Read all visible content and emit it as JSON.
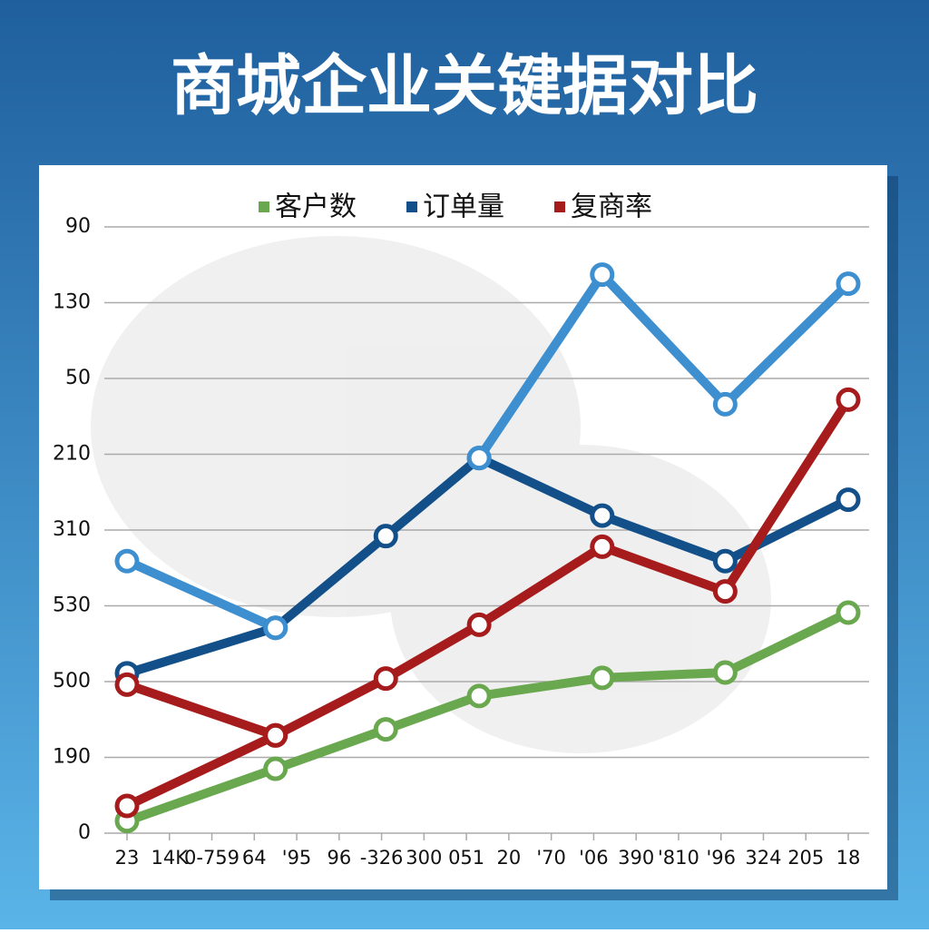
{
  "chart_data": {
    "type": "line",
    "title": "商城企业关键据对比",
    "x": [
      0,
      3.5,
      6.1,
      8.3,
      11.2,
      14.1,
      17
    ],
    "series": [
      {
        "name": "客户数",
        "color": "#6aa84f",
        "values": [
          0.16,
          0.85,
          1.37,
          1.81,
          2.05,
          2.12,
          2.91
        ]
      },
      {
        "name": "订单量",
        "color": "#13508a",
        "values": [
          2.11,
          2.71,
          3.92,
          4.95,
          4.19,
          3.59,
          4.4
        ]
      },
      {
        "name": "复商率",
        "color": "#a61c1c",
        "values": [
          0.36,
          1.29,
          2.04,
          2.75,
          3.78,
          3.19,
          5.72
        ]
      },
      {
        "color": "#3d8fd0",
        "values": [
          3.59,
          2.71,
          null,
          4.95,
          7.37,
          5.66,
          7.25
        ]
      },
      {
        "color": "#a61c1c",
        "values": [
          1.96,
          1.29,
          null,
          null,
          null,
          null,
          null
        ]
      }
    ],
    "xlim": [
      0,
      17
    ],
    "xticks": [
      {
        "value": 0,
        "label": "23"
      },
      {
        "value": 1,
        "label": "14K"
      },
      {
        "value": 2,
        "label": "0-759"
      },
      {
        "value": 3,
        "label": "64"
      },
      {
        "value": 4,
        "label": "'95"
      },
      {
        "value": 5,
        "label": "96"
      },
      {
        "value": 6,
        "label": "-326"
      },
      {
        "value": 7,
        "label": "300"
      },
      {
        "value": 8,
        "label": "051"
      },
      {
        "value": 9,
        "label": "20"
      },
      {
        "value": 10,
        "label": "'70"
      },
      {
        "value": 11,
        "label": "'06"
      },
      {
        "value": 12,
        "label": "390"
      },
      {
        "value": 13,
        "label": "'810"
      },
      {
        "value": 14,
        "label": "'96"
      },
      {
        "value": 15,
        "label": "324"
      },
      {
        "value": 16,
        "label": "205"
      },
      {
        "value": 17,
        "label": "18"
      }
    ],
    "ylim": [
      0,
      8
    ],
    "yticks": [
      {
        "value": 0,
        "label": "0"
      },
      {
        "value": 1,
        "label": "190"
      },
      {
        "value": 2,
        "label": "500"
      },
      {
        "value": 3,
        "label": "530"
      },
      {
        "value": 4,
        "label": "310"
      },
      {
        "value": 5,
        "label": "210"
      },
      {
        "value": 6,
        "label": "50"
      },
      {
        "value": 7,
        "label": "130"
      },
      {
        "value": 8,
        "label": "90"
      }
    ],
    "grid": true
  }
}
